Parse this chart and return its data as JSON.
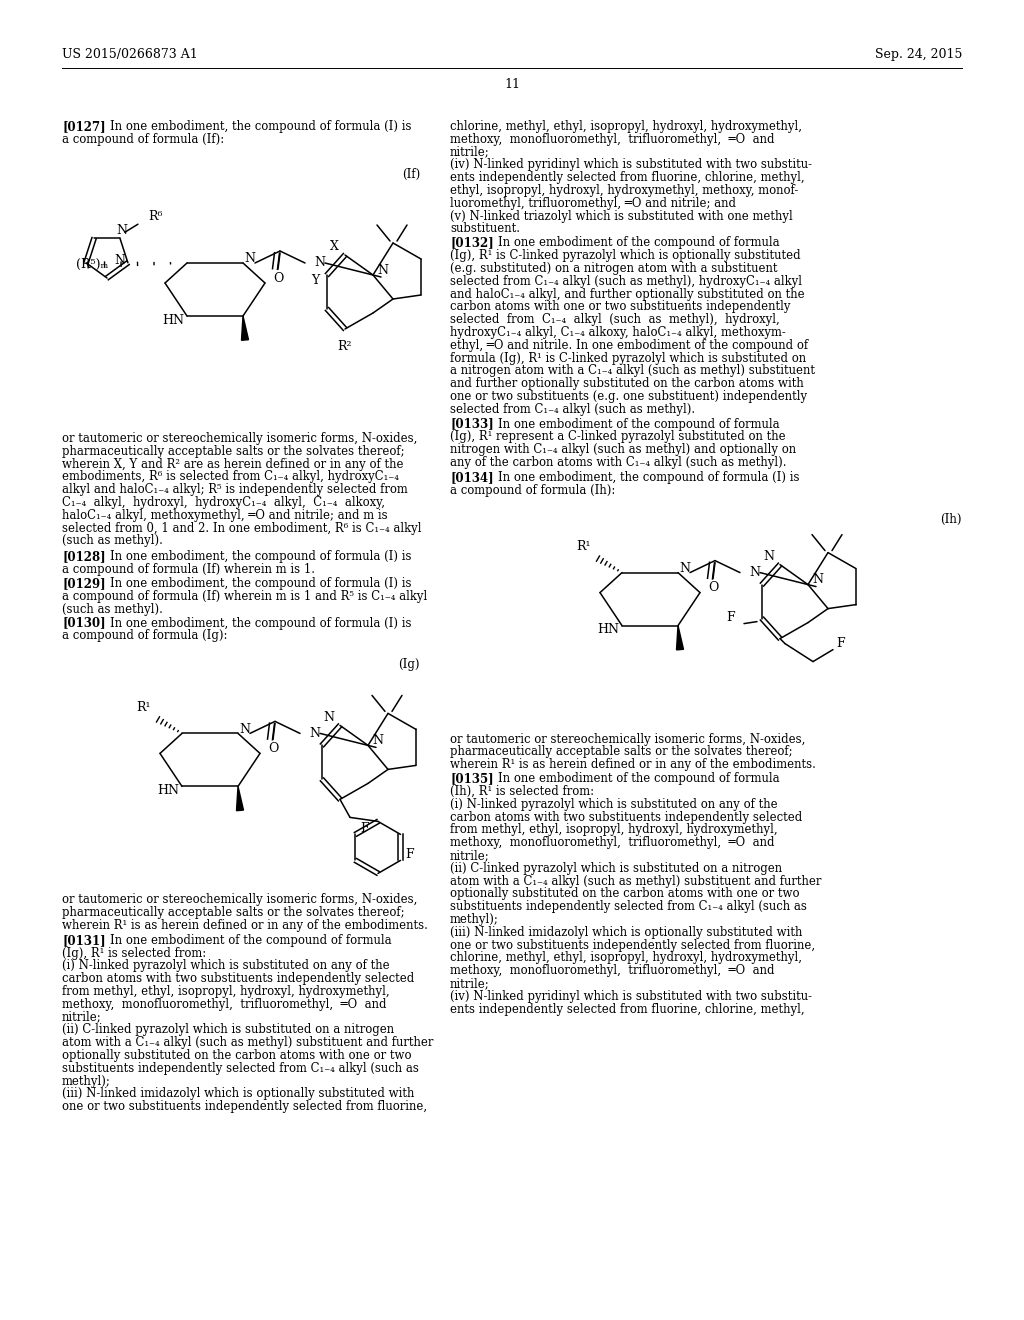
{
  "bg": "#ffffff",
  "header_left": "US 2015/0266873 A1",
  "header_right": "Sep. 24, 2015",
  "page_num": "11"
}
